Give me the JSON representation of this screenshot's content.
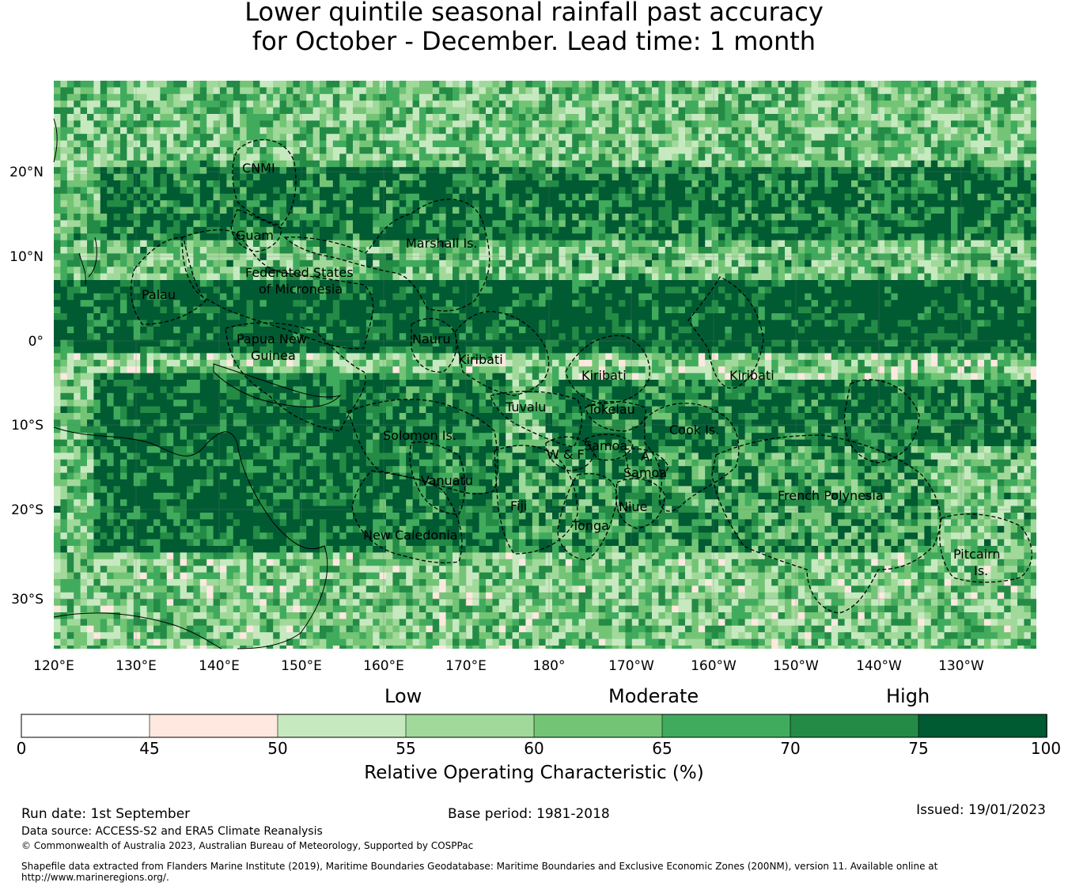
{
  "title": {
    "line1": "Lower quintile seasonal rainfall past accuracy",
    "line2": "for October - December. Lead time: 1 month"
  },
  "map": {
    "lon_labels": [
      "120°E",
      "130°E",
      "140°E",
      "150°E",
      "160°E",
      "170°E",
      "180°",
      "170°W",
      "160°W",
      "150°W",
      "140°W",
      "130°W"
    ],
    "lat_labels": [
      "20°N",
      "10°N",
      "0°",
      "10°S",
      "20°S",
      "30°S"
    ],
    "regions": [
      "CNMI",
      "Guam",
      "Marshall Is.",
      "Federated States",
      "of Micronesia",
      "Palau",
      "Papua New",
      "Guinea",
      "Nauru",
      "Kiribati",
      "Kiribati",
      "Kiribati",
      "Tuvalu",
      "Tokelau",
      "Solomon Is.",
      "Samoa",
      "W & F",
      "A.",
      "Samoa",
      "Cook Is.",
      "Vanuatu",
      "Fiji",
      "Niue",
      "Tonga",
      "French Polynesia",
      "New Caledonia",
      "Pitcairn",
      "Is."
    ]
  },
  "colorbar": {
    "categories": [
      "Low",
      "Moderate",
      "High"
    ],
    "ticks": [
      "0",
      "45",
      "50",
      "55",
      "60",
      "65",
      "70",
      "75",
      "100"
    ],
    "colors": [
      "#ffffff",
      "#fee8df",
      "#c7e9c0",
      "#a1d99b",
      "#74c476",
      "#41ab5d",
      "#238b45",
      "#005a32"
    ],
    "label": "Relative Operating Characteristic (%)"
  },
  "footer": {
    "run_date": "Run date: 1st September",
    "base_period": "Base period: 1981-2018",
    "issued": "Issued: 19/01/2023",
    "data_source": "Data source: ACCESS-S2 and ERA5 Climate Reanalysis",
    "copyright": "© Commonwealth of Australia 2023, Australian Bureau of Meteorology, Supported by COSPPac",
    "shapefile_line1": "Shapefile data extracted from Flanders Marine Institute (2019), Maritime Boundaries Geodatabase: Maritime Boundaries and Exclusive Economic Zones (200NM), version 11. Available online at",
    "shapefile_line2": "http://www.marineregions.org/."
  }
}
